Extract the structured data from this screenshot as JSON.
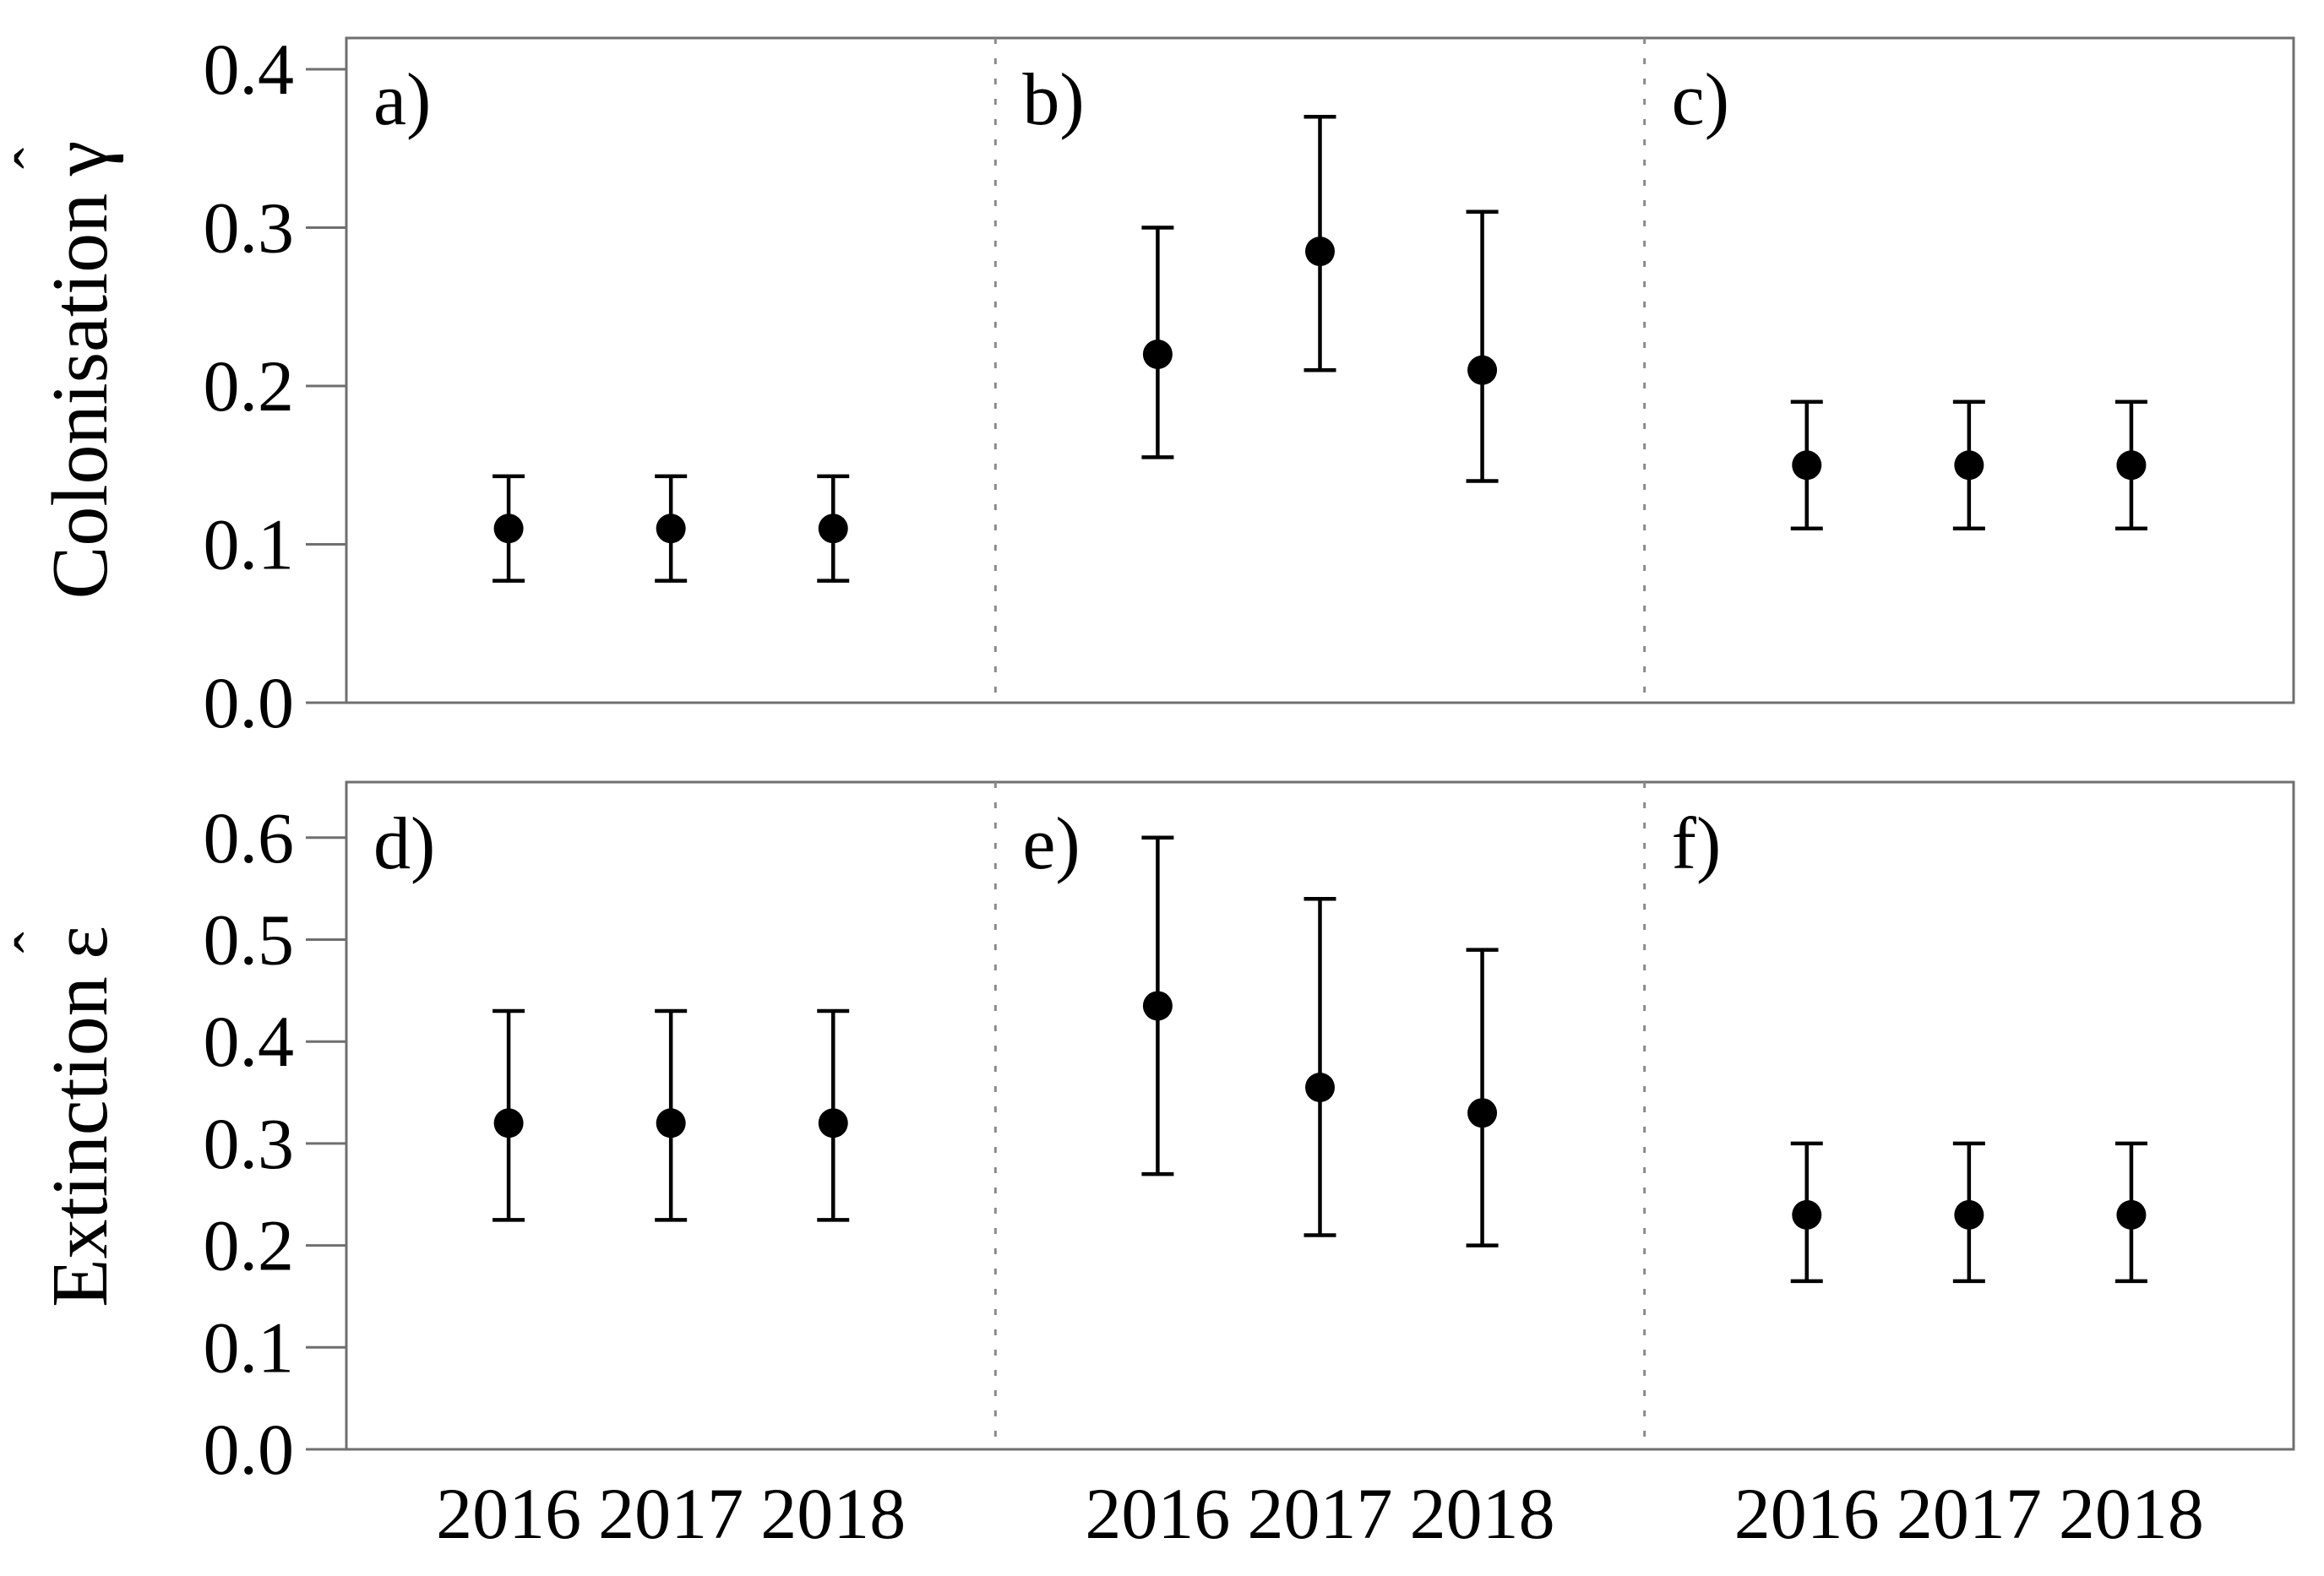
{
  "figure": {
    "background": "#ffffff",
    "border_color": "#6f6f6f",
    "separator_color": "#8a8a8a",
    "marker_color": "#000000",
    "text_color": "#000000"
  },
  "chart_data": [
    {
      "type": "scatter",
      "id": "colonisation",
      "ylabel": "Colonisation γ̂",
      "ylabel_word": "Colonisation",
      "ylabel_symbol": "γ",
      "ylabel_hat": "ˆ",
      "xlabel": "",
      "ylim": [
        0,
        0.42
      ],
      "yticks": [
        0.0,
        0.1,
        0.2,
        0.3,
        0.4
      ],
      "ytick_labels": [
        "0.0",
        "0.1",
        "0.2",
        "0.3",
        "0.4"
      ],
      "grid": false,
      "legend": null,
      "x_categories": [
        "2016",
        "2017",
        "2018"
      ],
      "panels": [
        {
          "label": "a)",
          "points": [
            {
              "year": "2016",
              "value": 0.11,
              "lo": 0.077,
              "hi": 0.143
            },
            {
              "year": "2017",
              "value": 0.11,
              "lo": 0.077,
              "hi": 0.143
            },
            {
              "year": "2018",
              "value": 0.11,
              "lo": 0.077,
              "hi": 0.143
            }
          ]
        },
        {
          "label": "b)",
          "points": [
            {
              "year": "2016",
              "value": 0.22,
              "lo": 0.155,
              "hi": 0.3
            },
            {
              "year": "2017",
              "value": 0.285,
              "lo": 0.21,
              "hi": 0.37
            },
            {
              "year": "2018",
              "value": 0.21,
              "lo": 0.14,
              "hi": 0.31
            }
          ]
        },
        {
          "label": "c)",
          "points": [
            {
              "year": "2016",
              "value": 0.15,
              "lo": 0.11,
              "hi": 0.19
            },
            {
              "year": "2017",
              "value": 0.15,
              "lo": 0.11,
              "hi": 0.19
            },
            {
              "year": "2018",
              "value": 0.15,
              "lo": 0.11,
              "hi": 0.19
            }
          ]
        }
      ]
    },
    {
      "type": "scatter",
      "id": "extinction",
      "ylabel": "Extinction ε̂",
      "ylabel_word": "Extinction",
      "ylabel_symbol": "ε",
      "ylabel_hat": "ˆ",
      "xlabel": "",
      "ylim": [
        0,
        0.655
      ],
      "yticks": [
        0.0,
        0.1,
        0.2,
        0.3,
        0.4,
        0.5,
        0.6
      ],
      "ytick_labels": [
        "0.0",
        "0.1",
        "0.2",
        "0.3",
        "0.4",
        "0.5",
        "0.6"
      ],
      "grid": false,
      "legend": null,
      "x_categories": [
        "2016",
        "2017",
        "2018"
      ],
      "panels": [
        {
          "label": "d)",
          "points": [
            {
              "year": "2016",
              "value": 0.32,
              "lo": 0.225,
              "hi": 0.43
            },
            {
              "year": "2017",
              "value": 0.32,
              "lo": 0.225,
              "hi": 0.43
            },
            {
              "year": "2018",
              "value": 0.32,
              "lo": 0.225,
              "hi": 0.43
            }
          ]
        },
        {
          "label": "e)",
          "points": [
            {
              "year": "2016",
              "value": 0.435,
              "lo": 0.27,
              "hi": 0.6
            },
            {
              "year": "2017",
              "value": 0.355,
              "lo": 0.21,
              "hi": 0.54
            },
            {
              "year": "2018",
              "value": 0.33,
              "lo": 0.2,
              "hi": 0.49
            }
          ]
        },
        {
          "label": "f)",
          "points": [
            {
              "year": "2016",
              "value": 0.23,
              "lo": 0.165,
              "hi": 0.3
            },
            {
              "year": "2017",
              "value": 0.23,
              "lo": 0.165,
              "hi": 0.3
            },
            {
              "year": "2018",
              "value": 0.23,
              "lo": 0.165,
              "hi": 0.3
            }
          ]
        }
      ]
    }
  ]
}
